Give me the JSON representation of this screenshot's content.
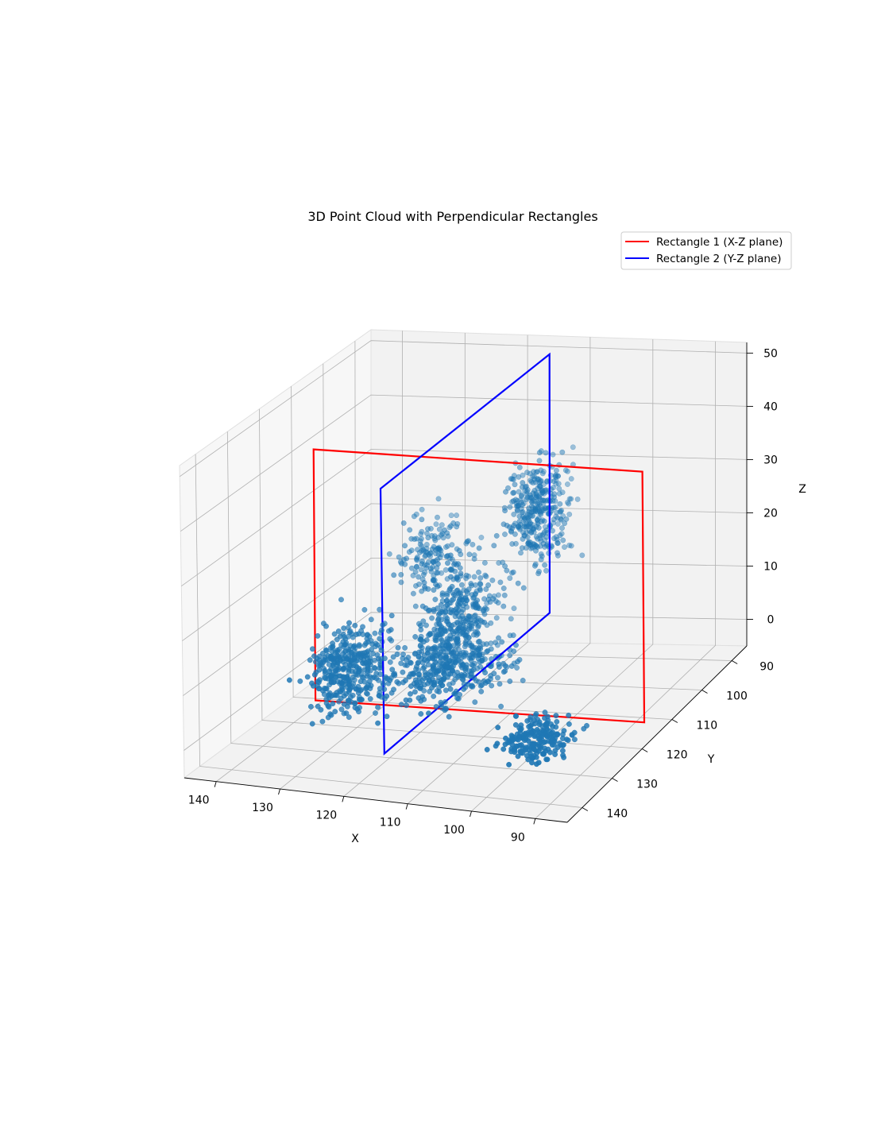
{
  "chart_data": {
    "type": "scatter",
    "title": "3D Point Cloud with Perpendicular Rectangles",
    "xlabel": "X",
    "ylabel": "Y",
    "zlabel": "Z",
    "xlim": [
      145,
      85
    ],
    "ylim": [
      85,
      145
    ],
    "zlim": [
      -5,
      52
    ],
    "x_ticks": [
      "140",
      "130",
      "120",
      "110",
      "100",
      "90"
    ],
    "y_ticks": [
      "90",
      "100",
      "110",
      "120",
      "130",
      "140"
    ],
    "z_ticks": [
      "0",
      "10",
      "20",
      "30",
      "40",
      "50"
    ],
    "grid": true,
    "legend_position": "top-right",
    "series": [
      {
        "name": "Rectangle 1 (X-Z plane)",
        "type": "line",
        "color": "#ff0000",
        "corners": [
          [
            139,
            115,
            -3
          ],
          [
            87,
            115,
            -3
          ],
          [
            87,
            115,
            43
          ],
          [
            139,
            115,
            43
          ]
        ]
      },
      {
        "name": "Rectangle 2 (Y-Z plane)",
        "type": "line",
        "color": "#0000ff",
        "corners": [
          [
            115,
            88,
            2
          ],
          [
            115,
            142,
            2
          ],
          [
            115,
            142,
            50
          ],
          [
            115,
            88,
            50
          ]
        ]
      },
      {
        "type": "scatter",
        "color": "#1f77b4",
        "point_count": 1800
      }
    ]
  }
}
